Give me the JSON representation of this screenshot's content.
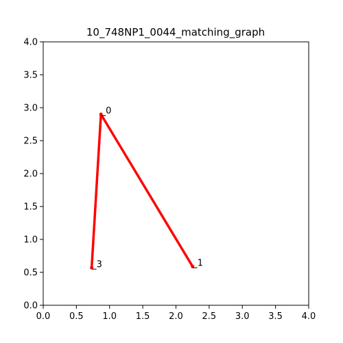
{
  "chart_data": {
    "type": "graph",
    "title": "10_748NP1_0044_matching_graph",
    "xlim": [
      0,
      4
    ],
    "ylim": [
      0,
      4
    ],
    "x_ticks": [
      "0.0",
      "0.5",
      "1.0",
      "1.5",
      "2.0",
      "2.5",
      "3.0",
      "3.5",
      "4.0"
    ],
    "y_ticks": [
      "0.0",
      "0.5",
      "1.0",
      "1.5",
      "2.0",
      "2.5",
      "3.0",
      "3.5",
      "4.0"
    ],
    "grid": false,
    "edge_color": "#ff0000",
    "node_color": "#ff0000",
    "nodes": [
      {
        "id": "0",
        "x": 0.87,
        "y": 2.9
      },
      {
        "id": "1",
        "x": 2.25,
        "y": 0.59
      },
      {
        "id": "3",
        "x": 0.73,
        "y": 0.57
      }
    ],
    "edges": [
      {
        "source": "0",
        "target": "1"
      },
      {
        "source": "0",
        "target": "3"
      }
    ]
  }
}
